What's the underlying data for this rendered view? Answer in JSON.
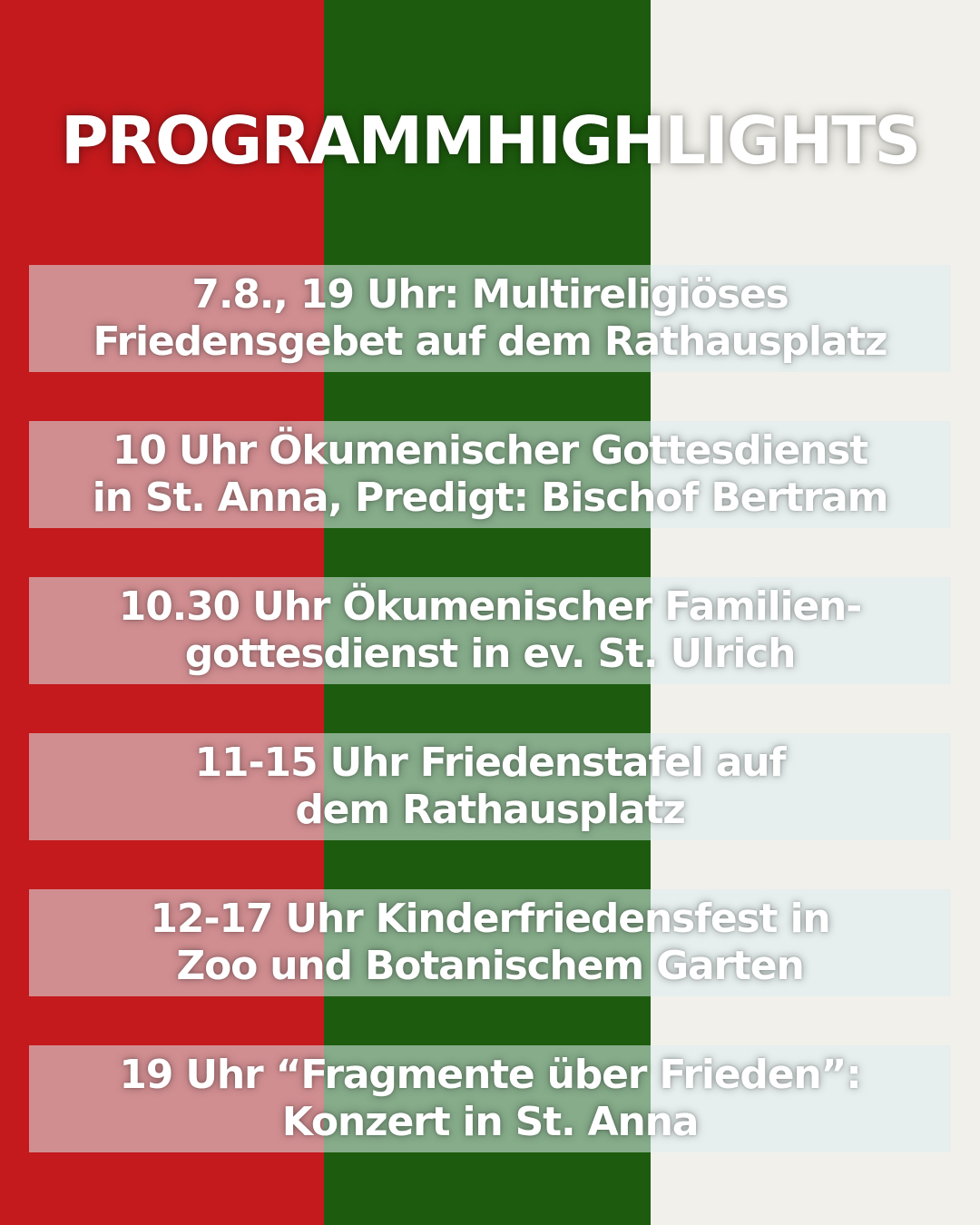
{
  "colors": {
    "red": "#c41a1d",
    "green": "#1d5c0e",
    "white": "#f1f0ea",
    "box": "#dceef0"
  },
  "title": "PROGRAMMHIGHLIGHTS",
  "events": [
    {
      "text": "7.8., 19 Uhr: Multireligiöses\nFriedensgebet auf dem Rathausplatz"
    },
    {
      "text": "10 Uhr Ökumenischer Gottesdienst\nin St. Anna, Predigt: Bischof Bertram"
    },
    {
      "text": "10.30 Uhr Ökumenischer Familien-\ngottesdienst in ev. St. Ulrich"
    },
    {
      "text": "11-15 Uhr Friedenstafel auf\ndem Rathausplatz"
    },
    {
      "text": "12-17 Uhr Kinderfriedensfest in\nZoo und Botanischem Garten"
    },
    {
      "text": "19 Uhr “Fragmente über Frieden”:\nKonzert in St. Anna"
    }
  ]
}
